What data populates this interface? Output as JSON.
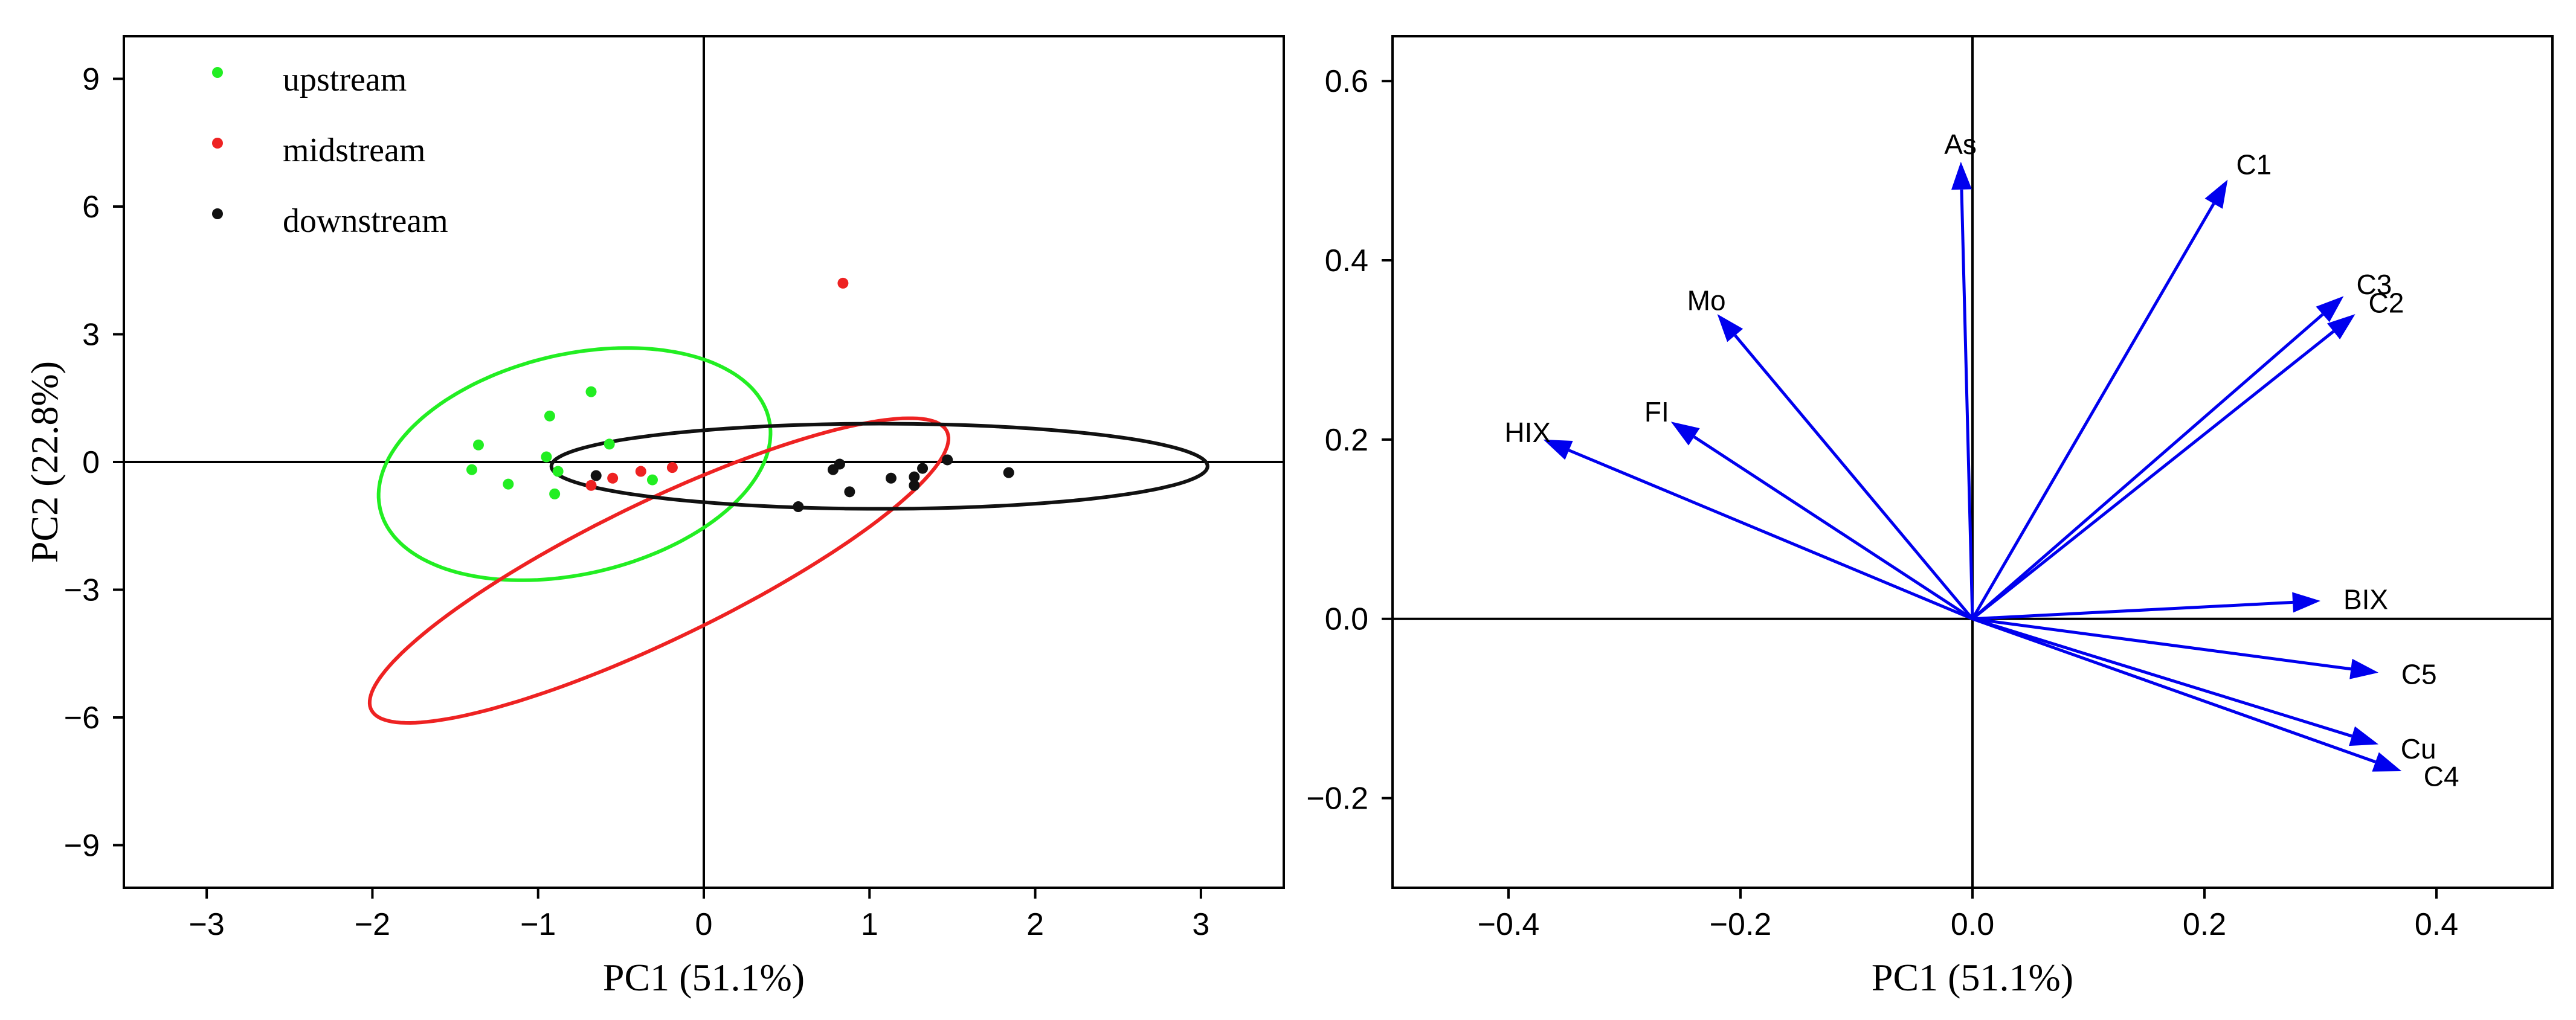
{
  "chart_data": [
    {
      "type": "scatter",
      "xlabel": "PC1 (51.1%)",
      "ylabel": "PC2 (22.8%)",
      "xlim": [
        -3.5,
        3.5
      ],
      "ylim": [
        -10,
        10
      ],
      "xticks": [
        -3,
        -2,
        -1,
        0,
        1,
        2,
        3
      ],
      "yticks": [
        -9,
        -6,
        -3,
        0,
        3,
        6,
        9
      ],
      "xtick_labels": [
        "−3",
        "−2",
        "−1",
        "0",
        "1",
        "2",
        "3"
      ],
      "ytick_labels": [
        "−9",
        "−6",
        "−3",
        "0",
        "3",
        "6",
        "9"
      ],
      "legend_position": "top-left",
      "series": [
        {
          "name": "upstream",
          "color": "#22ee22",
          "points": [
            [
              -1.36,
              0.4
            ],
            [
              -1.4,
              -0.18
            ],
            [
              -0.93,
              1.08
            ],
            [
              -0.68,
              1.65
            ],
            [
              -0.57,
              0.42
            ],
            [
              -0.95,
              0.12
            ],
            [
              -1.18,
              -0.52
            ],
            [
              -0.88,
              -0.22
            ],
            [
              -0.9,
              -0.75
            ],
            [
              -0.31,
              -0.42
            ]
          ],
          "ellipse": {
            "center": [
              -0.78,
              -0.05
            ],
            "rx": 1.13,
            "ry": 2.75,
            "angle_deg": -8
          }
        },
        {
          "name": "midstream",
          "color": "#ee2222",
          "points": [
            [
              0.84,
              4.2
            ],
            [
              -0.19,
              -0.13
            ],
            [
              -0.38,
              -0.22
            ],
            [
              -0.55,
              -0.38
            ],
            [
              -0.68,
              -0.55
            ]
          ],
          "ellipse": {
            "center": [
              -0.27,
              -2.55
            ],
            "rx": 3.9,
            "ry": 0.8,
            "angle_deg": 66
          }
        },
        {
          "name": "downstream",
          "color": "#111111",
          "points": [
            [
              -0.65,
              -0.32
            ],
            [
              0.57,
              -1.05
            ],
            [
              0.78,
              -0.18
            ],
            [
              0.82,
              -0.05
            ],
            [
              0.88,
              -0.7
            ],
            [
              1.13,
              -0.38
            ],
            [
              1.27,
              -0.35
            ],
            [
              1.27,
              -0.55
            ],
            [
              1.32,
              -0.15
            ],
            [
              1.47,
              0.05
            ],
            [
              1.84,
              -0.25
            ]
          ],
          "ellipse": {
            "center": [
              1.06,
              -0.1
            ],
            "rx": 1.98,
            "ry": 1.0,
            "angle_deg": 0
          }
        }
      ]
    },
    {
      "type": "biplot_loadings",
      "xlabel": "PC1 (51.1%)",
      "ylabel": "",
      "xlim": [
        -0.5,
        0.5
      ],
      "ylim": [
        -0.3,
        0.65
      ],
      "xticks": [
        -0.4,
        -0.2,
        0.0,
        0.2,
        0.4
      ],
      "yticks": [
        -0.2,
        0.0,
        0.2,
        0.4,
        0.6
      ],
      "xtick_labels": [
        "−0.4",
        "−0.2",
        "0.0",
        "0.2",
        "0.4"
      ],
      "ytick_labels": [
        "−0.2",
        "0.0",
        "0.2",
        "0.4",
        "0.6"
      ],
      "arrow_color": "#0000ee",
      "loadings": [
        {
          "label": "As",
          "x": -0.01,
          "y": 0.51
        },
        {
          "label": "C1",
          "x": 0.22,
          "y": 0.49
        },
        {
          "label": "C3",
          "x": 0.32,
          "y": 0.36
        },
        {
          "label": "C2",
          "x": 0.33,
          "y": 0.34
        },
        {
          "label": "Mo",
          "x": -0.22,
          "y": 0.34
        },
        {
          "label": "FI",
          "x": -0.26,
          "y": 0.22
        },
        {
          "label": "HIX",
          "x": -0.37,
          "y": 0.2
        },
        {
          "label": "BIX",
          "x": 0.3,
          "y": 0.02
        },
        {
          "label": "C5",
          "x": 0.35,
          "y": -0.06
        },
        {
          "label": "Cu",
          "x": 0.35,
          "y": -0.14
        },
        {
          "label": "C4",
          "x": 0.37,
          "y": -0.17
        }
      ]
    }
  ]
}
